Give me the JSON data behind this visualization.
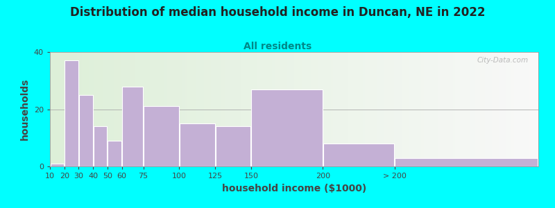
{
  "title": "Distribution of median household income in Duncan, NE in 2022",
  "subtitle": "All residents",
  "xlabel": "household income ($1000)",
  "ylabel": "households",
  "background_outer": "#00FFFF",
  "bar_color": "#C4B0D5",
  "bar_edge_color": "#FFFFFF",
  "ylim": [
    0,
    40
  ],
  "yticks": [
    0,
    20,
    40
  ],
  "tick_labels": [
    "10",
    "20",
    "30",
    "40",
    "50",
    "60",
    "75",
    "100",
    "125",
    "150",
    "200",
    "> 200"
  ],
  "values": [
    1,
    37,
    25,
    14,
    9,
    28,
    21,
    15,
    14,
    27,
    8,
    3
  ],
  "bar_lefts": [
    10,
    20,
    30,
    40,
    50,
    60,
    75,
    100,
    125,
    150,
    200,
    250
  ],
  "bar_widths": [
    10,
    10,
    10,
    10,
    10,
    15,
    25,
    25,
    25,
    50,
    50,
    100
  ],
  "tick_positions": [
    10,
    20,
    30,
    40,
    50,
    60,
    75,
    100,
    125,
    150,
    200,
    250
  ],
  "watermark": "City-Data.com",
  "title_fontsize": 12,
  "subtitle_fontsize": 10,
  "axis_label_fontsize": 10,
  "tick_fontsize": 8,
  "subtitle_color": "#008888",
  "title_color": "#222222",
  "axis_label_color": "#444444",
  "tick_color": "#444444"
}
